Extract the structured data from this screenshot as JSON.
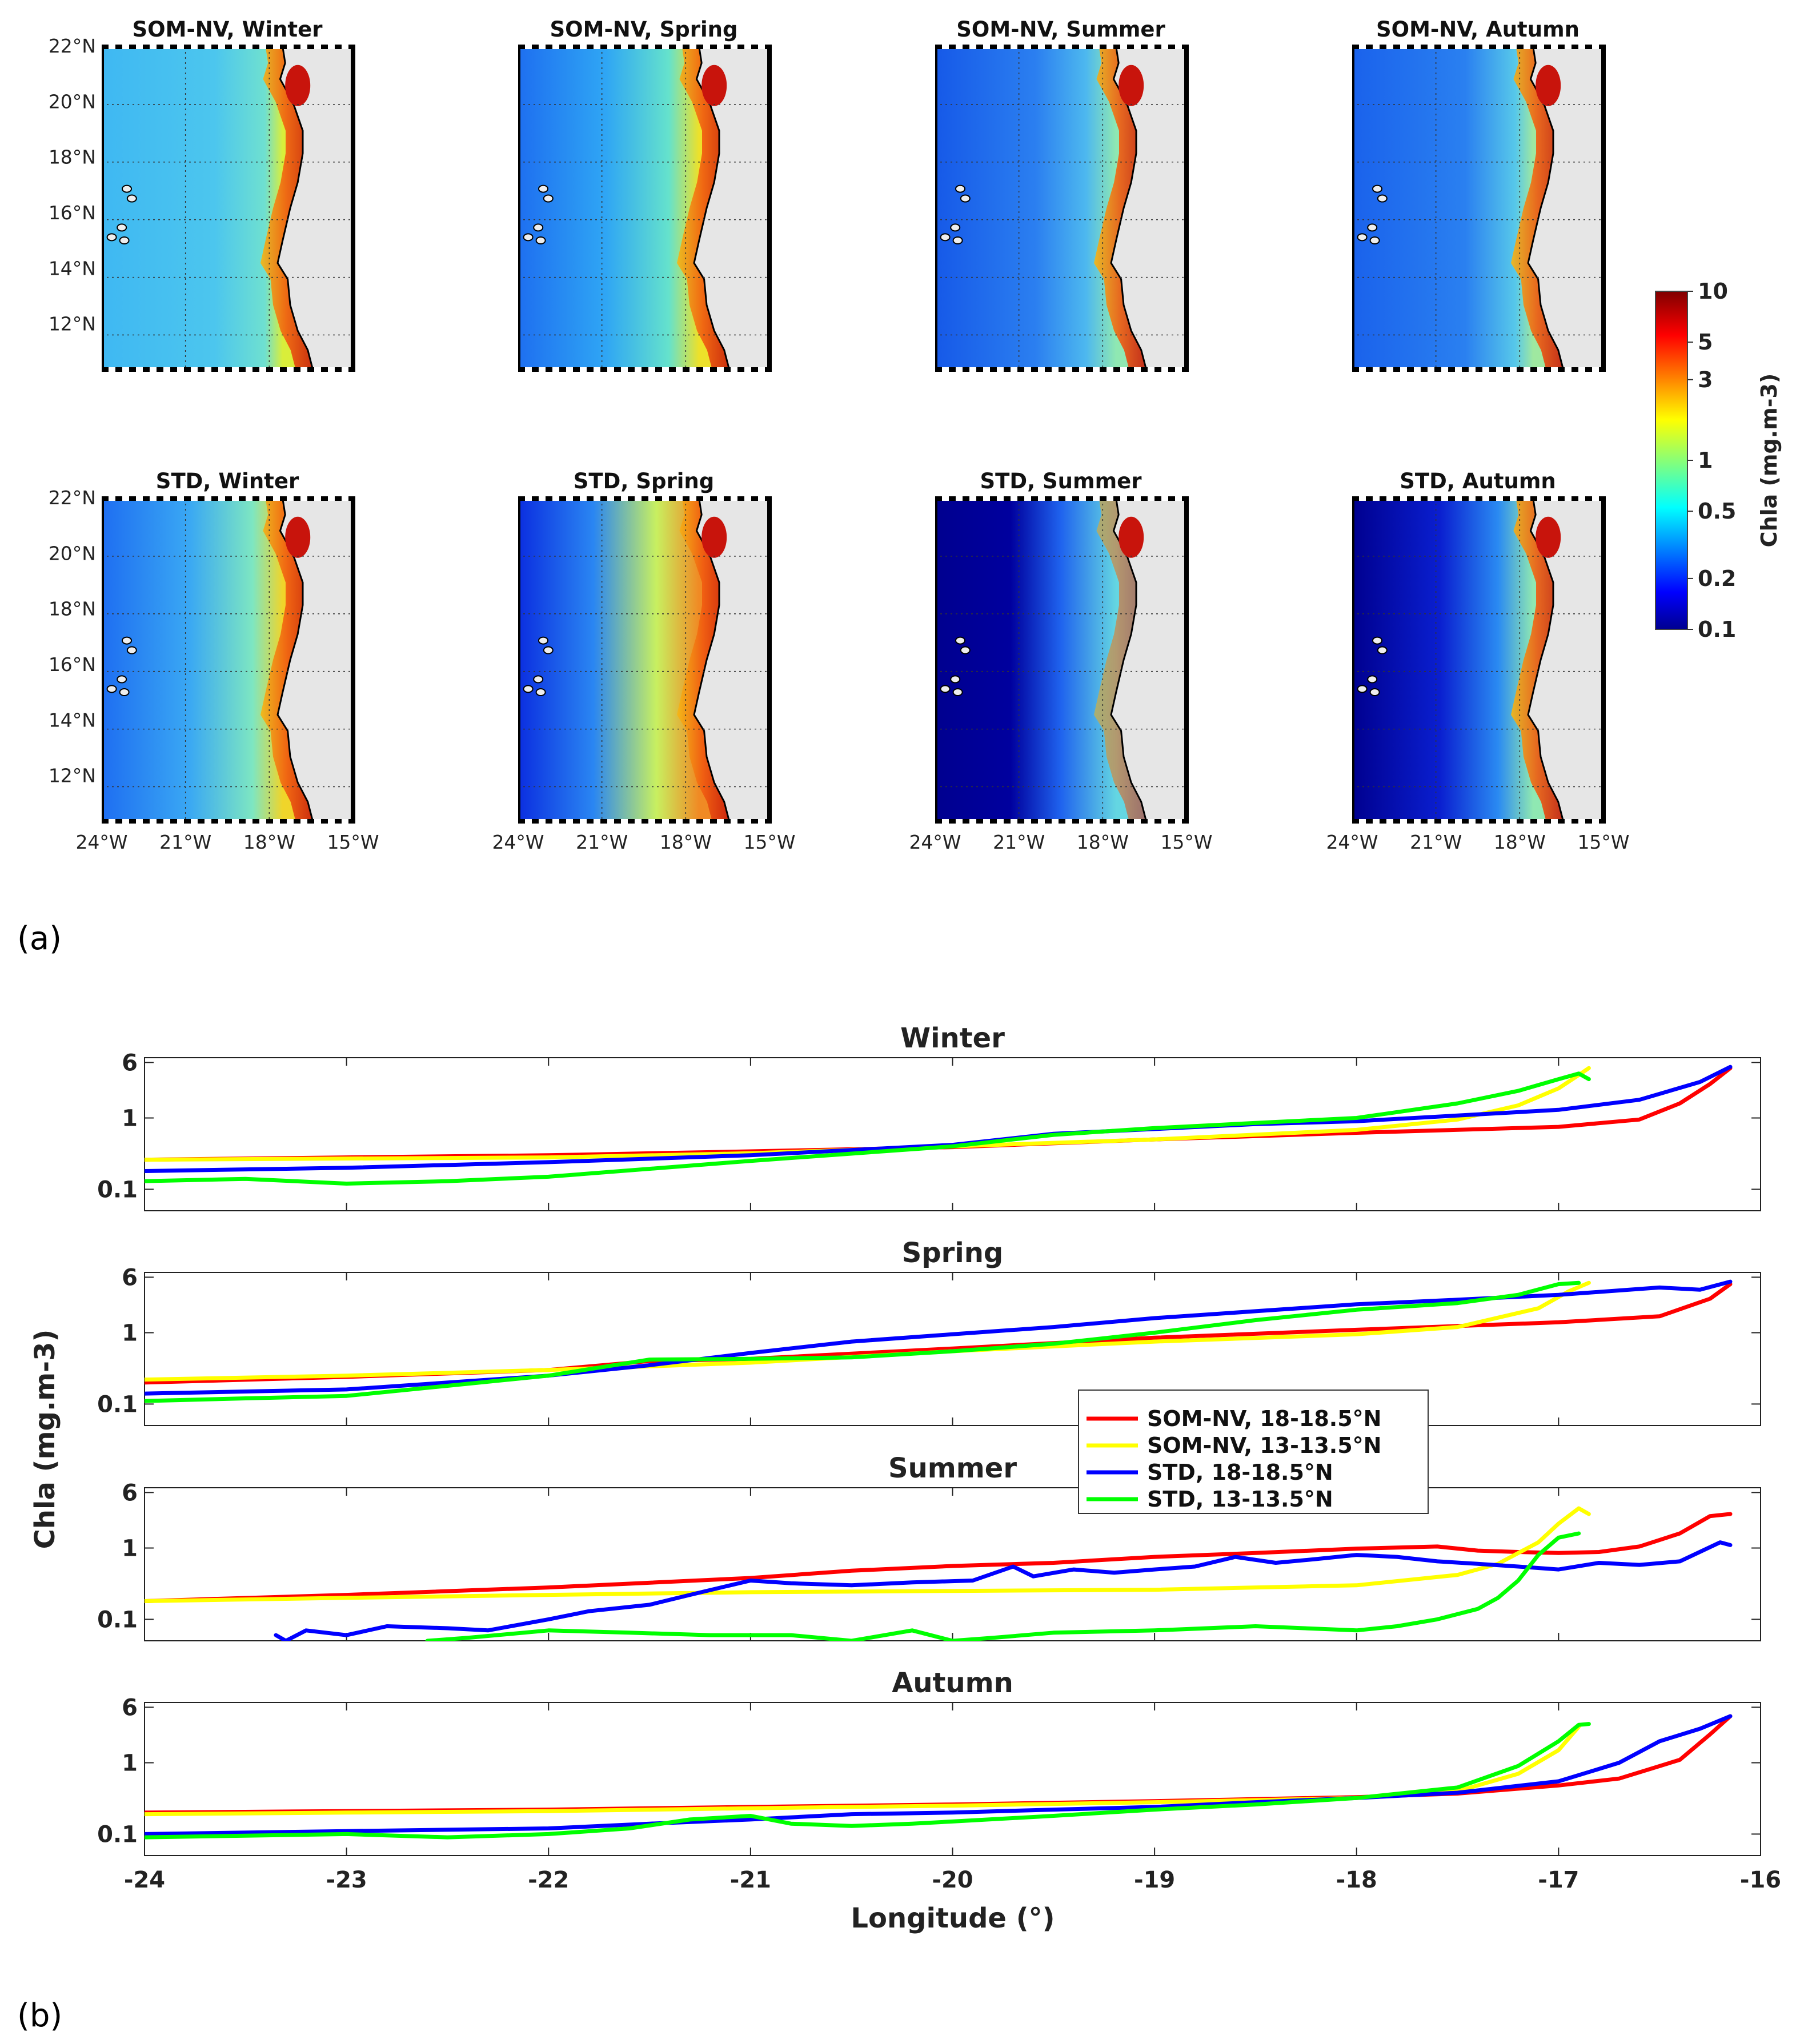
{
  "panel_a_label": "(a)",
  "panel_b_label": "(b)",
  "maps": {
    "rows": [
      {
        "method": "SOM-NV",
        "titles": [
          "SOM-NV, Winter",
          "SOM-NV, Spring",
          "SOM-NV, Summer",
          "SOM-NV, Autumn"
        ]
      },
      {
        "method": "STD",
        "titles": [
          "STD, Winter",
          "STD, Spring",
          "STD, Summer",
          "STD, Autumn"
        ]
      }
    ],
    "lat_ticks": [
      "22°N",
      "20°N",
      "18°N",
      "16°N",
      "14°N",
      "12°N"
    ],
    "lon_ticks": [
      "24°W",
      "21°W",
      "18°W",
      "15°W"
    ],
    "colorbar": {
      "label": "Chla (mg.m-3)",
      "ticks": [
        "10",
        "5",
        "3",
        "1",
        "0.5",
        "0.2",
        "0.1"
      ],
      "colormap": "jet",
      "scale": "log"
    },
    "land_color": "#e6e6e6"
  },
  "chart_data": {
    "type": "line",
    "xlabel": "Longitude (°)",
    "ylabel": "Chla (mg.m-3)",
    "xlim": [
      -24,
      -16
    ],
    "x_ticks": [
      "-24",
      "-23",
      "-22",
      "-21",
      "-20",
      "-19",
      "-18",
      "-17",
      "-16"
    ],
    "y_scale": "log",
    "y_ticks": [
      "6",
      "1",
      "0.1"
    ],
    "legend": [
      {
        "label": "SOM-NV, 18-18.5°N",
        "color": "#ff0000"
      },
      {
        "label": "SOM-NV, 13-13.5°N",
        "color": "#ffff00"
      },
      {
        "label": "STD, 18-18.5°N",
        "color": "#0000ff"
      },
      {
        "label": "STD, 13-13.5°N",
        "color": "#00ff00"
      }
    ],
    "panels": [
      {
        "title": "Winter",
        "ylim": [
          0.05,
          7
        ],
        "series": [
          {
            "name": "SOM-NV, 18-18.5°N",
            "x": [
              -24,
              -23,
              -22,
              -21,
              -20,
              -19,
              -18,
              -17,
              -16.6,
              -16.4,
              -16.25,
              -16.15
            ],
            "y": [
              0.26,
              0.28,
              0.3,
              0.34,
              0.39,
              0.5,
              0.62,
              0.75,
              0.95,
              1.6,
              3.0,
              5.0
            ]
          },
          {
            "name": "SOM-NV, 13-13.5°N",
            "x": [
              -24,
              -22,
              -21,
              -20,
              -19,
              -18,
              -17.5,
              -17.2,
              -17,
              -16.9,
              -16.85
            ],
            "y": [
              0.26,
              0.28,
              0.32,
              0.4,
              0.5,
              0.68,
              0.95,
              1.5,
              2.6,
              4.0,
              5.0
            ]
          },
          {
            "name": "STD, 18-18.5°N",
            "x": [
              -24,
              -23,
              -22,
              -21,
              -20,
              -19.5,
              -19,
              -18.5,
              -18,
              -17,
              -16.6,
              -16.3,
              -16.15
            ],
            "y": [
              0.18,
              0.2,
              0.24,
              0.3,
              0.42,
              0.6,
              0.7,
              0.82,
              0.9,
              1.3,
              1.8,
              3.2,
              5.2
            ]
          },
          {
            "name": "STD, 13-13.5°N",
            "x": [
              -24,
              -23.5,
              -23,
              -22.5,
              -22,
              -21,
              -20,
              -19.5,
              -19,
              -18.5,
              -18,
              -17.5,
              -17.2,
              -17,
              -16.9,
              -16.85
            ],
            "y": [
              0.13,
              0.14,
              0.12,
              0.13,
              0.15,
              0.25,
              0.4,
              0.58,
              0.72,
              0.85,
              1.0,
              1.6,
              2.4,
              3.5,
              4.2,
              3.5
            ]
          }
        ]
      },
      {
        "title": "Spring",
        "ylim": [
          0.05,
          7
        ],
        "series": [
          {
            "name": "SOM-NV, 18-18.5°N",
            "x": [
              -24,
              -23,
              -22,
              -21.5,
              -21,
              -20,
              -19,
              -18,
              -17,
              -16.5,
              -16.25,
              -16.15
            ],
            "y": [
              0.2,
              0.24,
              0.3,
              0.4,
              0.43,
              0.6,
              0.85,
              1.1,
              1.4,
              1.7,
              3.0,
              4.8
            ]
          },
          {
            "name": "SOM-NV, 13-13.5°N",
            "x": [
              -24,
              -23,
              -22,
              -21,
              -20,
              -19,
              -18,
              -17.5,
              -17.1,
              -16.95,
              -16.85
            ],
            "y": [
              0.22,
              0.25,
              0.3,
              0.38,
              0.55,
              0.75,
              0.95,
              1.2,
              2.2,
              3.8,
              5.0
            ]
          },
          {
            "name": "STD, 18-18.5°N",
            "x": [
              -24,
              -23,
              -22,
              -21.5,
              -21,
              -20.5,
              -20,
              -19.5,
              -19,
              -18.5,
              -18,
              -17.5,
              -17,
              -16.5,
              -16.3,
              -16.15
            ],
            "y": [
              0.14,
              0.16,
              0.25,
              0.35,
              0.52,
              0.75,
              0.95,
              1.2,
              1.6,
              2.0,
              2.5,
              2.9,
              3.4,
              4.3,
              4.0,
              5.2
            ]
          },
          {
            "name": "STD, 13-13.5°N",
            "x": [
              -24,
              -23.5,
              -23,
              -22.5,
              -22,
              -21.5,
              -21,
              -20.5,
              -20,
              -19.5,
              -19,
              -18.5,
              -18,
              -17.5,
              -17.2,
              -17,
              -16.9
            ],
            "y": [
              0.11,
              0.12,
              0.13,
              0.18,
              0.25,
              0.42,
              0.43,
              0.45,
              0.55,
              0.7,
              1.0,
              1.5,
              2.1,
              2.6,
              3.4,
              4.8,
              5.0
            ]
          }
        ]
      },
      {
        "title": "Summer",
        "ylim": [
          0.05,
          7
        ],
        "series": [
          {
            "name": "SOM-NV, 18-18.5°N",
            "x": [
              -24,
              -23,
              -22,
              -21,
              -20.5,
              -20,
              -19.5,
              -19,
              -18.5,
              -18,
              -17.6,
              -17.4,
              -17.2,
              -17,
              -16.8,
              -16.6,
              -16.4,
              -16.25,
              -16.15
            ],
            "y": [
              0.18,
              0.22,
              0.28,
              0.38,
              0.48,
              0.56,
              0.62,
              0.75,
              0.85,
              0.98,
              1.05,
              0.92,
              0.88,
              0.85,
              0.88,
              1.05,
              1.6,
              2.8,
              3.0
            ]
          },
          {
            "name": "SOM-NV, 13-13.5°N",
            "x": [
              -24,
              -23,
              -22,
              -21,
              -20,
              -19,
              -18,
              -17.5,
              -17.3,
              -17.1,
              -17,
              -16.9,
              -16.85
            ],
            "y": [
              0.18,
              0.2,
              0.22,
              0.24,
              0.25,
              0.26,
              0.3,
              0.42,
              0.6,
              1.2,
              2.2,
              3.6,
              3.0
            ]
          },
          {
            "name": "STD, 18-18.5°N",
            "x": [
              -23.35,
              -23.3,
              -23.2,
              -23,
              -22.8,
              -22.5,
              -22.3,
              -22,
              -21.8,
              -21.5,
              -21.3,
              -21.1,
              -21,
              -20.8,
              -20.5,
              -20.2,
              -19.9,
              -19.7,
              -19.6,
              -19.4,
              -19.2,
              -19,
              -18.8,
              -18.6,
              -18.4,
              -18.2,
              -18,
              -17.8,
              -17.6,
              -17.4,
              -17.2,
              -17,
              -16.8,
              -16.6,
              -16.4,
              -16.2,
              -16.15
            ],
            "y": [
              0.06,
              0.05,
              0.07,
              0.06,
              0.08,
              0.075,
              0.07,
              0.1,
              0.13,
              0.16,
              0.22,
              0.3,
              0.35,
              0.32,
              0.3,
              0.33,
              0.35,
              0.55,
              0.4,
              0.5,
              0.45,
              0.5,
              0.55,
              0.75,
              0.62,
              0.7,
              0.8,
              0.75,
              0.65,
              0.6,
              0.55,
              0.5,
              0.62,
              0.58,
              0.65,
              1.2,
              1.1
            ]
          },
          {
            "name": "STD, 13-13.5°N",
            "x": [
              -22.6,
              -22.4,
              -22,
              -21.6,
              -21.2,
              -20.8,
              -20.5,
              -20.2,
              -20,
              -19.8,
              -19.5,
              -19,
              -18.5,
              -18,
              -17.8,
              -17.6,
              -17.4,
              -17.3,
              -17.2,
              -17.1,
              -17,
              -16.9
            ],
            "y": [
              0.05,
              0.055,
              0.07,
              0.065,
              0.06,
              0.06,
              0.05,
              0.07,
              0.05,
              0.055,
              0.065,
              0.07,
              0.08,
              0.07,
              0.08,
              0.1,
              0.14,
              0.2,
              0.35,
              0.8,
              1.4,
              1.6
            ]
          }
        ]
      },
      {
        "title": "Autumn",
        "ylim": [
          0.05,
          7
        ],
        "series": [
          {
            "name": "SOM-NV, 18-18.5°N",
            "x": [
              -24,
              -23,
              -22,
              -21,
              -20,
              -19,
              -18,
              -17.5,
              -17,
              -16.7,
              -16.4,
              -16.25,
              -16.15
            ],
            "y": [
              0.2,
              0.21,
              0.22,
              0.24,
              0.26,
              0.29,
              0.33,
              0.37,
              0.48,
              0.6,
              1.1,
              2.5,
              4.5
            ]
          },
          {
            "name": "SOM-NV, 13-13.5°N",
            "x": [
              -24,
              -23,
              -22,
              -21,
              -20,
              -19,
              -18,
              -17.5,
              -17.2,
              -17,
              -16.9
            ],
            "y": [
              0.19,
              0.2,
              0.21,
              0.23,
              0.25,
              0.28,
              0.32,
              0.4,
              0.7,
              1.5,
              3.2
            ]
          },
          {
            "name": "STD, 18-18.5°N",
            "x": [
              -24,
              -23,
              -22,
              -21.5,
              -21,
              -20.5,
              -20,
              -19.5,
              -19,
              -18.5,
              -18,
              -17.5,
              -17,
              -16.7,
              -16.5,
              -16.3,
              -16.15
            ],
            "y": [
              0.1,
              0.11,
              0.12,
              0.14,
              0.16,
              0.19,
              0.2,
              0.22,
              0.24,
              0.28,
              0.32,
              0.38,
              0.55,
              1.0,
              2.0,
              3.0,
              4.5
            ]
          },
          {
            "name": "STD, 13-13.5°N",
            "x": [
              -24,
              -23.5,
              -23,
              -22.5,
              -22,
              -21.6,
              -21.3,
              -21,
              -20.8,
              -20.5,
              -20.2,
              -20,
              -19.5,
              -19,
              -18.5,
              -18,
              -17.5,
              -17.2,
              -17,
              -16.9,
              -16.85
            ],
            "y": [
              0.09,
              0.095,
              0.1,
              0.09,
              0.1,
              0.12,
              0.16,
              0.18,
              0.14,
              0.13,
              0.14,
              0.15,
              0.18,
              0.22,
              0.26,
              0.32,
              0.45,
              0.9,
              2.0,
              3.4,
              3.5
            ]
          }
        ]
      }
    ]
  }
}
